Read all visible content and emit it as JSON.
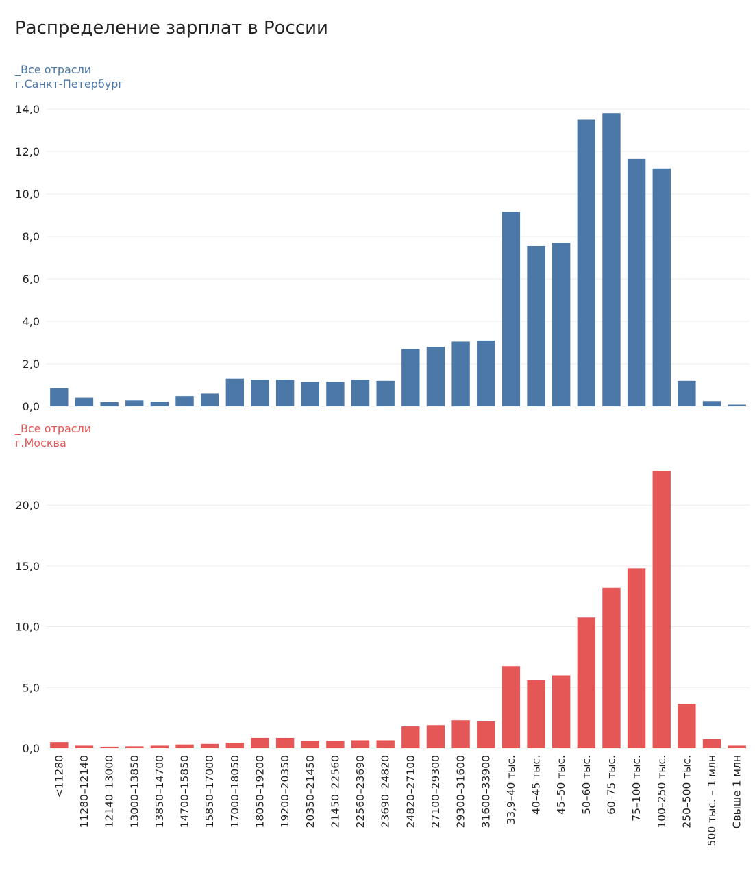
{
  "chart_data": {
    "type": "bar",
    "title": "Распределение зарплат в России",
    "categories": [
      "<11280",
      "11280–12140",
      "12140–13000",
      "13000–13850",
      "13850–14700",
      "14700–15850",
      "15850–17000",
      "17000–18050",
      "18050–19200",
      "19200–20350",
      "20350–21450",
      "21450–22560",
      "22560–23690",
      "23690–24820",
      "24820–27100",
      "27100–29300",
      "29300–31600",
      "31600–33900",
      "33,9–40 тыс.",
      "40–45 тыс.",
      "45–50 тыс.",
      "50–60 тыс.",
      "60–75 тыс.",
      "75–100 тыс.",
      "100–250 тыс.",
      "250–500 тыс.",
      "500 тыс. – 1 млн",
      "Свыше 1 млн"
    ],
    "panels": [
      {
        "line1": "_Все отрасли",
        "line2": "г.Санкт-Петербург",
        "color": "#4c78a8",
        "ylim": [
          0,
          14
        ],
        "yticks": [
          0,
          2,
          4,
          6,
          8,
          10,
          12,
          14
        ],
        "ytick_labels": [
          "0,0",
          "2,0",
          "4,0",
          "6,0",
          "8,0",
          "10,0",
          "12,0",
          "14,0"
        ],
        "values": [
          0.85,
          0.4,
          0.2,
          0.28,
          0.22,
          0.48,
          0.6,
          1.3,
          1.25,
          1.25,
          1.15,
          1.15,
          1.25,
          1.2,
          2.7,
          2.8,
          3.05,
          3.1,
          9.15,
          7.55,
          7.7,
          13.5,
          13.8,
          11.65,
          11.2,
          1.2,
          0.25,
          0.08
        ],
        "grid": true
      },
      {
        "line1": "_Все отрасли",
        "line2": "г.Москва",
        "color": "#e45756",
        "ylim": [
          0,
          23.5
        ],
        "yticks": [
          0,
          5,
          10,
          15,
          20
        ],
        "ytick_labels": [
          "0,0",
          "5,0",
          "10,0",
          "15,0",
          "20,0"
        ],
        "values": [
          0.5,
          0.2,
          0.12,
          0.15,
          0.2,
          0.3,
          0.35,
          0.45,
          0.85,
          0.85,
          0.6,
          0.6,
          0.65,
          0.65,
          1.8,
          1.9,
          2.3,
          2.2,
          6.75,
          5.6,
          6.0,
          10.75,
          13.2,
          14.8,
          22.8,
          3.65,
          0.75,
          0.2
        ],
        "grid": true
      }
    ]
  }
}
